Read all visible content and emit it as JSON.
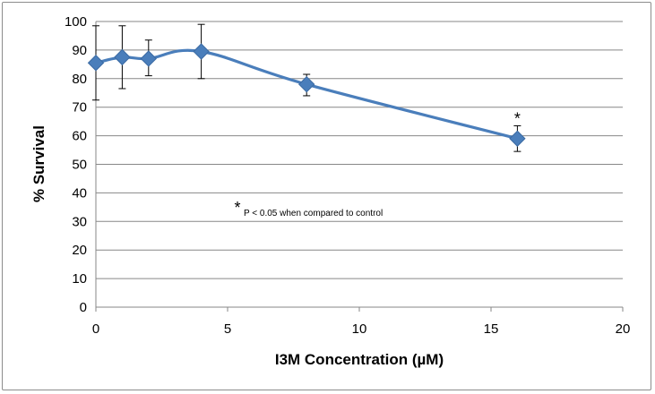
{
  "chart_data": {
    "type": "line",
    "title": "",
    "xlabel": "I3M Concentration (µM)",
    "ylabel": "% Survival",
    "xlim": [
      0,
      20
    ],
    "ylim": [
      0,
      100
    ],
    "x_ticks": [
      0,
      5,
      10,
      15,
      20
    ],
    "y_ticks": [
      0,
      10,
      20,
      30,
      40,
      50,
      60,
      70,
      80,
      90,
      100
    ],
    "grid": "horizontal",
    "legend": "none",
    "series": [
      {
        "color": "#4a7ebb",
        "marker": "diamond",
        "smooth": true,
        "points": [
          {
            "x": 0,
            "y": 85.5,
            "err_low": 72.5,
            "err_high": 98.5
          },
          {
            "x": 1,
            "y": 87.5,
            "err_low": 76.5,
            "err_high": 98.5
          },
          {
            "x": 2,
            "y": 87,
            "err_low": 81,
            "err_high": 93.5
          },
          {
            "x": 4,
            "y": 89.5,
            "err_low": 80,
            "err_high": 99
          },
          {
            "x": 8,
            "y": 78,
            "err_low": 74,
            "err_high": 81.5
          },
          {
            "x": 16,
            "y": 59,
            "err_low": 54.5,
            "err_high": 63.5
          }
        ]
      }
    ],
    "annotations": {
      "significance_marker": "*",
      "significance_marker_x": 16,
      "footnote_marker": "*",
      "footnote_text": "P < 0.05 when compared to control"
    }
  }
}
